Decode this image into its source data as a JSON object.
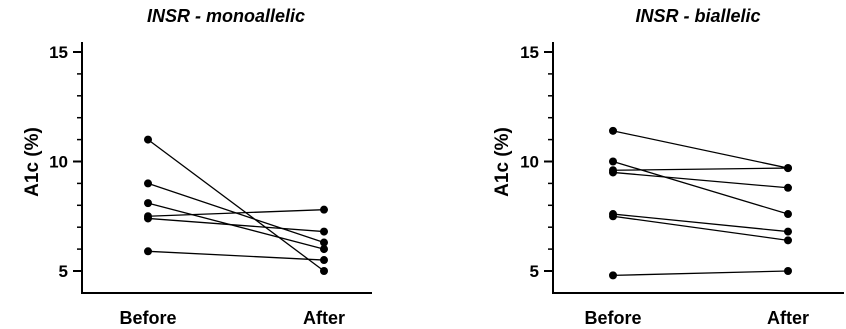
{
  "chart_data": [
    {
      "type": "line",
      "title": "INSR - monoallelic",
      "ylabel": "A1c (%)",
      "xlabel": "",
      "categories": [
        "Before",
        "After"
      ],
      "ylim": [
        4.5,
        15.5
      ],
      "yticks": [
        5,
        10,
        15
      ],
      "grid": false,
      "series": [
        {
          "values": [
            11.0,
            5.0
          ]
        },
        {
          "values": [
            9.0,
            6.3
          ]
        },
        {
          "values": [
            8.1,
            6.0
          ]
        },
        {
          "values": [
            7.5,
            7.8
          ]
        },
        {
          "values": [
            7.4,
            6.8
          ]
        },
        {
          "values": [
            5.9,
            5.5
          ]
        }
      ]
    },
    {
      "type": "line",
      "title": "INSR - biallelic",
      "ylabel": "A1c (%)",
      "xlabel": "",
      "categories": [
        "Before",
        "After"
      ],
      "ylim": [
        4.5,
        15.5
      ],
      "yticks": [
        5,
        10,
        15
      ],
      "grid": false,
      "series": [
        {
          "values": [
            11.4,
            9.7
          ]
        },
        {
          "values": [
            10.0,
            7.6
          ]
        },
        {
          "values": [
            9.6,
            9.7
          ]
        },
        {
          "values": [
            9.5,
            8.8
          ]
        },
        {
          "values": [
            7.6,
            6.8
          ]
        },
        {
          "values": [
            7.5,
            6.4
          ]
        },
        {
          "values": [
            4.8,
            5.0
          ]
        }
      ]
    }
  ]
}
